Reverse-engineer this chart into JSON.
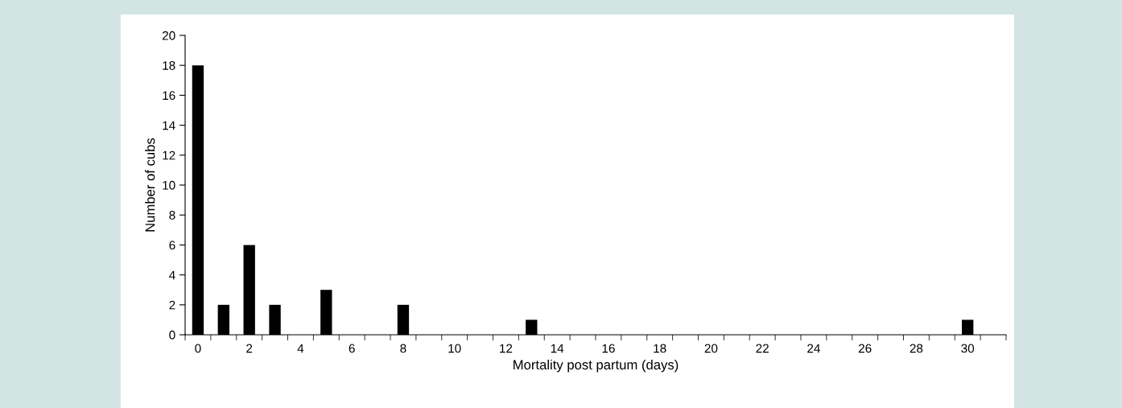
{
  "chart_data": {
    "type": "bar",
    "xlabel": "Mortality post partum (days)",
    "ylabel": "Number of cubs",
    "categories": [
      "0",
      null,
      "2",
      null,
      "4",
      null,
      "6",
      null,
      "8",
      null,
      "10",
      null,
      "12",
      null,
      "14",
      null,
      "16",
      null,
      "18",
      null,
      "20",
      null,
      "22",
      null,
      "24",
      null,
      "26",
      null,
      "28",
      null,
      "30",
      null
    ],
    "values": [
      18,
      2,
      6,
      2,
      0,
      3,
      0,
      0,
      2,
      0,
      0,
      0,
      0,
      1,
      0,
      0,
      0,
      0,
      0,
      0,
      0,
      0,
      0,
      0,
      0,
      0,
      0,
      0,
      0,
      0,
      1,
      0
    ],
    "color": "#000000",
    "ylim": [
      0,
      20
    ],
    "yticks": [
      0,
      2,
      4,
      6,
      8,
      10,
      12,
      14,
      16,
      18,
      20
    ],
    "grid": false,
    "legend": false
  }
}
